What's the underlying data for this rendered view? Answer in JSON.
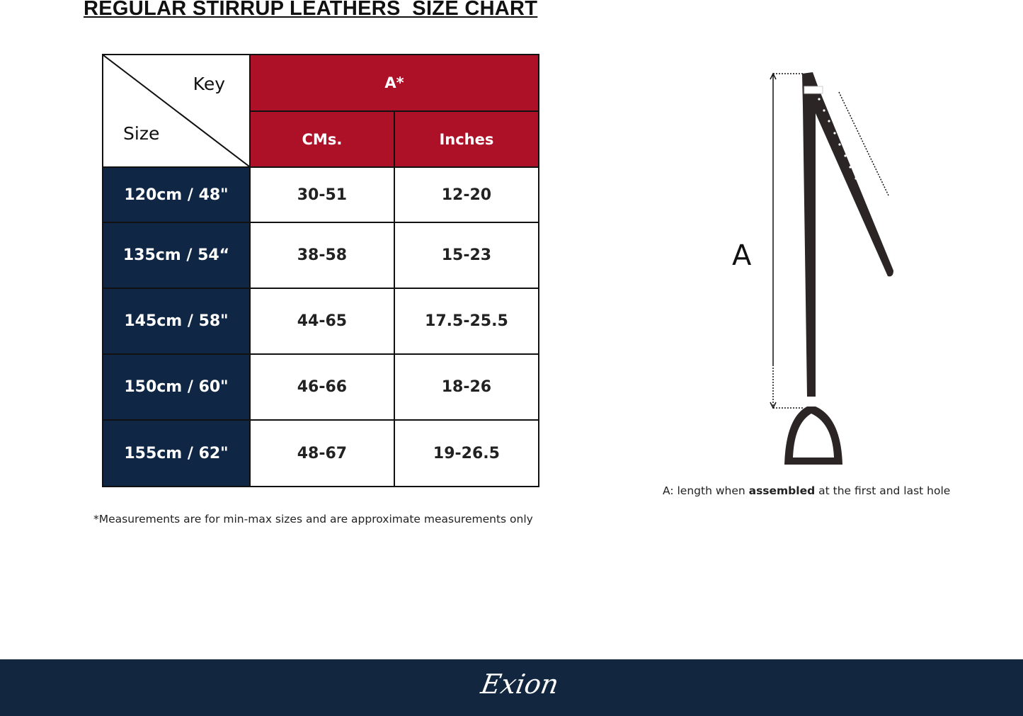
{
  "title": "REGULAR STIRRUP LEATHERS  SIZE CHART",
  "table": {
    "key_label": "Key",
    "size_label": "Size",
    "group_header": "A*",
    "col_headers": [
      "CMs.",
      "Inches"
    ],
    "rows": [
      {
        "size": "120cm / 48\"",
        "cms": "30-51",
        "inches": "12-20"
      },
      {
        "size": "135cm / 54“",
        "cms": "38-58",
        "inches": "15-23"
      },
      {
        "size": "145cm / 58\"",
        "cms": "44-65",
        "inches": "17.5-25.5"
      },
      {
        "size": "150cm / 60\"",
        "cms": "46-66",
        "inches": "18-26"
      },
      {
        "size": "155cm / 62\"",
        "cms": "48-67",
        "inches": "19-26.5"
      }
    ]
  },
  "note": "*Measurements are for min-max sizes and are approximate measurements only",
  "diagram": {
    "label": "A",
    "caption_pre": "A: length when ",
    "caption_bold": "assembled",
    "caption_post": " at the first and last hole"
  },
  "footer": {
    "logo": "Exion"
  },
  "colors": {
    "red": "#ad1128",
    "navy": "#0f2744",
    "footer": "#12263f"
  }
}
